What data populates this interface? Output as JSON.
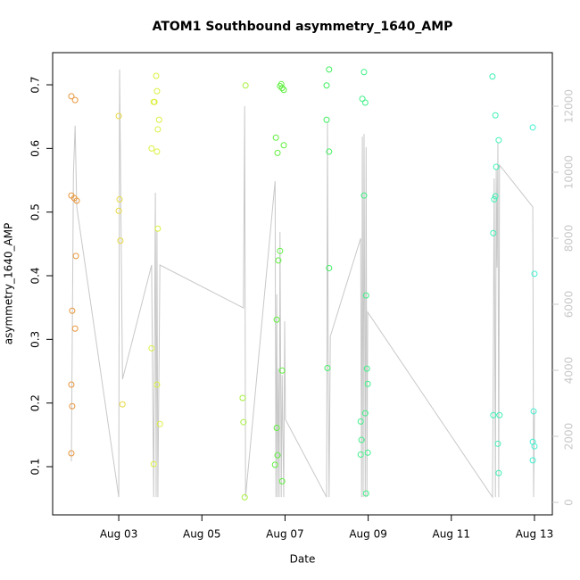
{
  "chart_data": {
    "type": "scatter",
    "title": "ATOM1 Southbound asymmetry_1640_AMP",
    "xlabel": "Date",
    "ylabel": "asymmetry_1640_AMP",
    "xlim": [
      1.41,
      13.43
    ],
    "ylim": [
      0.0243,
      0.7505
    ],
    "y2lim": [
      -378,
      13622
    ],
    "xticks": [
      {
        "value": 3,
        "label": "Aug 03"
      },
      {
        "value": 5,
        "label": "Aug 05"
      },
      {
        "value": 7,
        "label": "Aug 07"
      },
      {
        "value": 9,
        "label": "Aug 09"
      },
      {
        "value": 11,
        "label": "Aug 11"
      },
      {
        "value": 13,
        "label": "Aug 13"
      }
    ],
    "yticks": [
      0.1,
      0.2,
      0.3,
      0.4,
      0.5,
      0.6,
      0.7
    ],
    "y2ticks": [
      0,
      2000,
      4000,
      6000,
      8000,
      10000,
      12000
    ],
    "y2color": "#c8c8c8",
    "series": [
      {
        "color": "#e8963c",
        "x": [
          1.86,
          1.95,
          1.86,
          1.93,
          1.99,
          1.97,
          1.88,
          1.95,
          1.86,
          1.88,
          1.86
        ],
        "values": [
          0.682,
          0.676,
          0.526,
          0.522,
          0.518,
          0.431,
          0.345,
          0.317,
          0.229,
          0.195,
          0.121
        ]
      },
      {
        "color": "#e8d840",
        "x": [
          3.0,
          3.02,
          3.0,
          3.04,
          3.09
        ],
        "values": [
          0.651,
          0.52,
          0.502,
          0.455,
          0.198
        ]
      },
      {
        "color": "#dcf040",
        "x": [
          3.9,
          3.92,
          3.86,
          3.84,
          3.97,
          3.94,
          3.79,
          3.92,
          3.94,
          3.79,
          3.92,
          3.99,
          3.84
        ],
        "values": [
          0.714,
          0.69,
          0.673,
          0.673,
          0.645,
          0.63,
          0.6,
          0.595,
          0.474,
          0.286,
          0.229,
          0.167,
          0.104
        ]
      },
      {
        "color": "#a8f040",
        "x": [
          6.05,
          5.98,
          6.0,
          6.03
        ],
        "values": [
          0.699,
          0.208,
          0.17,
          0.052
        ]
      },
      {
        "color": "#60f040",
        "x": [
          6.91,
          6.93,
          6.97,
          6.88,
          6.78,
          6.97,
          6.82,
          6.88,
          6.84,
          6.8,
          6.93,
          6.8,
          6.82,
          6.76,
          6.93
        ],
        "values": [
          0.701,
          0.695,
          0.692,
          0.698,
          0.617,
          0.605,
          0.593,
          0.439,
          0.424,
          0.331,
          0.251,
          0.161,
          0.118,
          0.103,
          0.077
        ]
      },
      {
        "color": "#40f060",
        "x": [
          8.06,
          8.0,
          8.0,
          8.06,
          8.06,
          8.02
        ],
        "values": [
          0.724,
          0.699,
          0.645,
          0.595,
          0.412,
          0.255
        ]
      },
      {
        "color": "#40f088",
        "x": [
          8.9,
          8.86,
          8.93,
          8.9,
          8.95,
          8.97,
          8.99,
          8.93,
          8.82,
          8.84,
          8.82,
          8.99,
          8.95
        ],
        "values": [
          0.72,
          0.678,
          0.672,
          0.526,
          0.369,
          0.254,
          0.23,
          0.184,
          0.171,
          0.142,
          0.119,
          0.122,
          0.058
        ]
      },
      {
        "color": "#40f0b4",
        "x": [
          11.99,
          12.06,
          12.14,
          12.08,
          12.06,
          12.03,
          12.01,
          12.01,
          12.16,
          12.12,
          12.14
        ],
        "values": [
          0.713,
          0.652,
          0.613,
          0.571,
          0.525,
          0.52,
          0.467,
          0.181,
          0.181,
          0.136,
          0.09
        ]
      },
      {
        "color": "#40f0d0",
        "x": [
          12.96,
          13.0,
          12.98,
          12.96,
          13.0,
          12.96
        ],
        "values": [
          0.633,
          0.403,
          0.187,
          0.139,
          0.132,
          0.11
        ]
      },
      {
        "type": "line",
        "axis": "y2",
        "color": "#c8c8c8",
        "x": [
          1.86,
          1.91,
          1.95,
          1.99,
          3.0,
          3.02,
          3.09,
          3.79,
          3.84,
          3.88,
          3.9,
          3.92,
          3.94,
          3.99,
          6.0,
          6.03,
          6.05,
          6.76,
          6.78,
          6.8,
          6.82,
          6.84,
          6.86,
          6.88,
          6.91,
          6.93,
          6.97,
          6.99,
          7.01,
          8.0,
          8.02,
          8.04,
          8.06,
          8.09,
          8.82,
          8.84,
          8.86,
          8.88,
          8.9,
          8.93,
          8.95,
          8.97,
          8.99,
          11.99,
          12.01,
          12.03,
          12.06,
          12.08,
          12.1,
          12.12,
          12.14,
          12.16,
          12.96,
          12.98,
          13.0
        ],
        "values": [
          1240,
          9950,
          11410,
          8950,
          160,
          13110,
          3730,
          7190,
          160,
          9380,
          160,
          8240,
          160,
          7190,
          5890,
          12000,
          160,
          9730,
          160,
          6300,
          160,
          4050,
          160,
          8190,
          160,
          3860,
          160,
          5490,
          2510,
          160,
          11510,
          3760,
          160,
          5030,
          8000,
          160,
          11080,
          160,
          11160,
          160,
          10760,
          160,
          5760,
          160,
          3860,
          9810,
          160,
          10080,
          7110,
          10890,
          160,
          10220,
          8950,
          160,
          2780
        ]
      }
    ]
  }
}
